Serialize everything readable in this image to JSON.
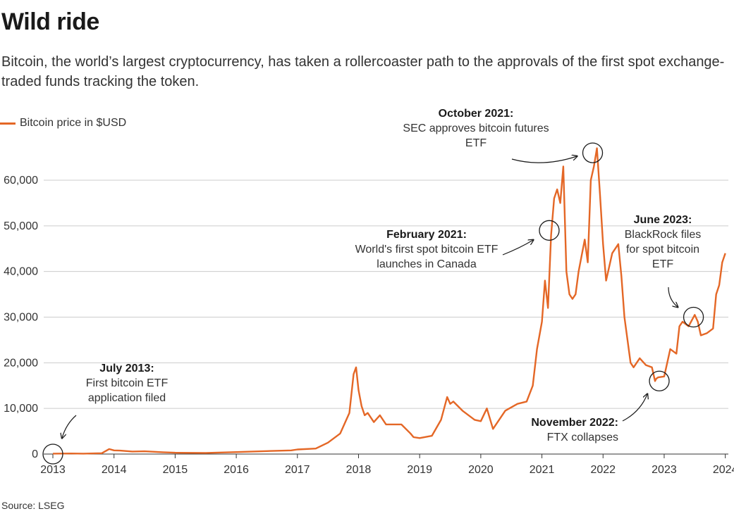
{
  "header": {
    "title": "Wild ride",
    "subtitle": "Bitcoin, the world’s largest cryptocurrency, has taken a rollercoaster path to the approvals of the first spot exchange-traded funds tracking the token."
  },
  "footer": {
    "source": "Source: LSEG"
  },
  "chart_data": {
    "type": "line",
    "title": "",
    "xlabel": "",
    "ylabel": "",
    "xlim": [
      2013,
      2024.05
    ],
    "ylim": [
      0,
      60000
    ],
    "grid": true,
    "legend": "top-left",
    "colors": {
      "line": "#e46726",
      "grid": "#cccccc",
      "axis": "#333333"
    },
    "x_ticks": [
      {
        "value": 2013,
        "label": "2013"
      },
      {
        "value": 2014,
        "label": "2014"
      },
      {
        "value": 2015,
        "label": "2015"
      },
      {
        "value": 2016,
        "label": "2016"
      },
      {
        "value": 2017,
        "label": "2017"
      },
      {
        "value": 2018,
        "label": "2018"
      },
      {
        "value": 2019,
        "label": "2019"
      },
      {
        "value": 2020,
        "label": "2020"
      },
      {
        "value": 2021,
        "label": "2021"
      },
      {
        "value": 2022,
        "label": "2022"
      },
      {
        "value": 2023,
        "label": "2023"
      },
      {
        "value": 2024,
        "label": "2024"
      }
    ],
    "y_ticks": [
      {
        "value": 0,
        "label": "0"
      },
      {
        "value": 10000,
        "label": "10,000"
      },
      {
        "value": 20000,
        "label": "20,000"
      },
      {
        "value": 30000,
        "label": "30,000"
      },
      {
        "value": 40000,
        "label": "40,000"
      },
      {
        "value": 50000,
        "label": "50,000"
      },
      {
        "value": 60000,
        "label": "60,000"
      }
    ],
    "series": [
      {
        "name": "Bitcoin price in $USD",
        "x": [
          2013.0,
          2013.3,
          2013.5,
          2013.8,
          2013.92,
          2014.0,
          2014.1,
          2014.3,
          2014.5,
          2014.8,
          2015.0,
          2015.5,
          2016.0,
          2016.5,
          2016.9,
          2017.0,
          2017.3,
          2017.5,
          2017.7,
          2017.85,
          2017.92,
          2017.96,
          2018.0,
          2018.05,
          2018.1,
          2018.15,
          2018.25,
          2018.35,
          2018.45,
          2018.55,
          2018.7,
          2018.85,
          2018.9,
          2019.0,
          2019.2,
          2019.35,
          2019.45,
          2019.5,
          2019.55,
          2019.7,
          2019.9,
          2020.0,
          2020.1,
          2020.2,
          2020.4,
          2020.6,
          2020.75,
          2020.85,
          2020.92,
          2021.0,
          2021.05,
          2021.1,
          2021.15,
          2021.2,
          2021.25,
          2021.3,
          2021.35,
          2021.4,
          2021.45,
          2021.5,
          2021.55,
          2021.6,
          2021.7,
          2021.75,
          2021.8,
          2021.85,
          2021.9,
          2021.95,
          2022.0,
          2022.05,
          2022.15,
          2022.25,
          2022.3,
          2022.35,
          2022.45,
          2022.5,
          2022.6,
          2022.7,
          2022.8,
          2022.85,
          2022.87,
          2022.9,
          2023.0,
          2023.1,
          2023.2,
          2023.25,
          2023.3,
          2023.4,
          2023.5,
          2023.55,
          2023.6,
          2023.7,
          2023.8,
          2023.85,
          2023.9,
          2023.95,
          2024.0
        ],
        "y": [
          100,
          120,
          90,
          180,
          1100,
          800,
          750,
          550,
          600,
          400,
          300,
          250,
          430,
          650,
          800,
          1000,
          1200,
          2500,
          4500,
          9000,
          17500,
          19000,
          14000,
          10500,
          8500,
          9000,
          7000,
          8500,
          6500,
          6500,
          6500,
          4500,
          3700,
          3500,
          4000,
          7500,
          12500,
          11000,
          11500,
          9500,
          7500,
          7200,
          10000,
          5500,
          9500,
          11000,
          11500,
          15000,
          23000,
          29000,
          38000,
          32000,
          48000,
          56000,
          58000,
          55000,
          63000,
          40000,
          35000,
          34000,
          35000,
          40000,
          47000,
          42000,
          60000,
          63000,
          67000,
          57000,
          46000,
          38000,
          44000,
          46000,
          39000,
          30000,
          20000,
          19000,
          21000,
          19500,
          19000,
          16000,
          16500,
          16800,
          17000,
          23000,
          22000,
          28000,
          29000,
          28000,
          30500,
          29000,
          26000,
          26500,
          27500,
          35000,
          37000,
          42000,
          44000
        ]
      }
    ],
    "annotations": [
      {
        "id": "july-2013",
        "title": "July 2013:",
        "lines": [
          "First bitcoin ETF",
          "application filed"
        ],
        "x": 2013.0,
        "y": 0
      },
      {
        "id": "feb-2021",
        "title": "February 2021:",
        "lines": [
          "World's first spot bitcoin ETF",
          "launches in Canada"
        ],
        "x": 2021.12,
        "y": 49000
      },
      {
        "id": "oct-2021",
        "title": "October 2021:",
        "lines": [
          "SEC approves bitcoin futures",
          "ETF"
        ],
        "x": 2021.83,
        "y": 66000
      },
      {
        "id": "nov-2022",
        "title": "November 2022:",
        "lines": [
          "FTX collapses"
        ],
        "x": 2022.92,
        "y": 16000
      },
      {
        "id": "jun-2023",
        "title": "June 2023:",
        "lines": [
          "BlackRock files",
          "for spot bitcoin",
          "ETF"
        ],
        "x": 2023.48,
        "y": 30000
      }
    ]
  }
}
